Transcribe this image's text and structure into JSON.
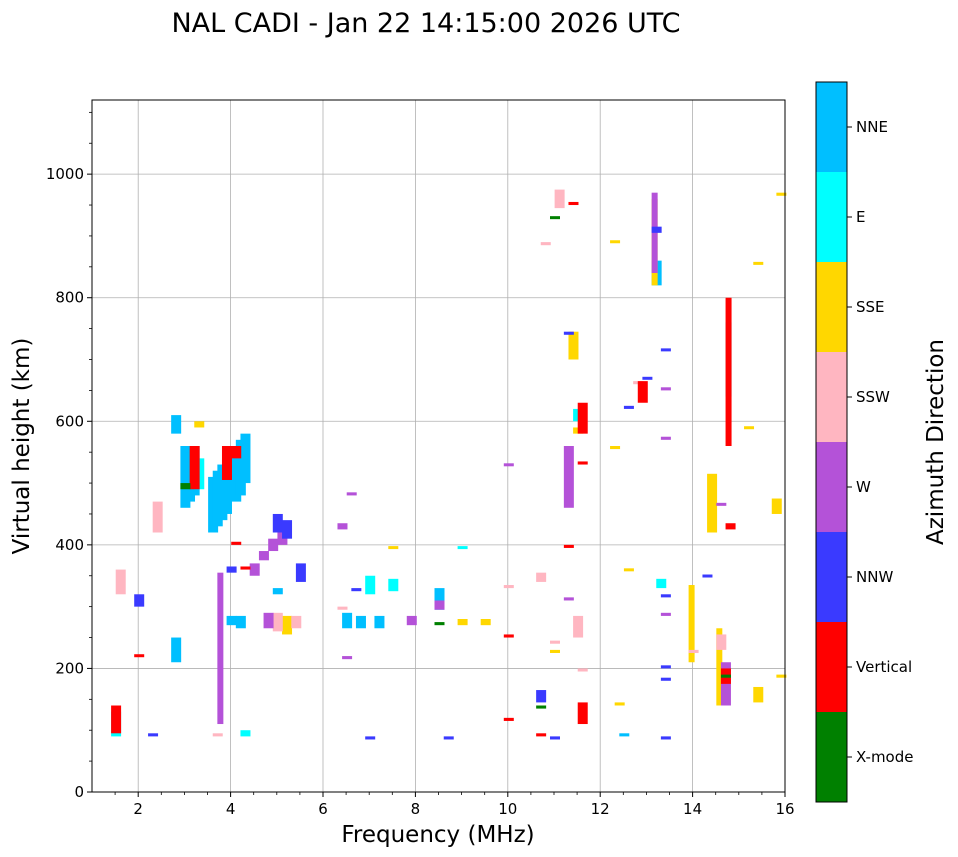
{
  "chart_data": {
    "type": "scatter",
    "title": "NAL CADI - Jan 22 14:15:00 2026 UTC",
    "xlabel": "Frequency (MHz)",
    "ylabel": "Virtual height (km)",
    "xlim": [
      1,
      16
    ],
    "ylim": [
      0,
      1120
    ],
    "xticks": [
      2,
      4,
      6,
      8,
      10,
      12,
      14,
      16
    ],
    "yticks": [
      0,
      200,
      400,
      600,
      800,
      1000
    ],
    "grid": true,
    "colorbar": {
      "label": "Azimuth Direction",
      "categories": [
        {
          "name": "X-mode",
          "color": "#008000"
        },
        {
          "name": "Vertical",
          "color": "#ff0000"
        },
        {
          "name": "NNW",
          "color": "#3a3aff"
        },
        {
          "name": "W",
          "color": "#b452d8"
        },
        {
          "name": "SSW",
          "color": "#ffb6c1"
        },
        {
          "name": "SSE",
          "color": "#ffd700"
        },
        {
          "name": "E",
          "color": "#00ffff"
        },
        {
          "name": "NNE",
          "color": "#00bfff"
        }
      ]
    },
    "series": [
      {
        "name": "NNE",
        "traces": [
          {
            "f": 3.0,
            "h": [
              460,
              560
            ]
          },
          {
            "f": 3.1,
            "h": [
              470,
              550
            ]
          },
          {
            "f": 3.2,
            "h": [
              480,
              560
            ]
          },
          {
            "f": 3.6,
            "h": [
              420,
              510
            ]
          },
          {
            "f": 3.7,
            "h": [
              430,
              520
            ]
          },
          {
            "f": 3.8,
            "h": [
              440,
              530
            ]
          },
          {
            "f": 3.9,
            "h": [
              450,
              540
            ]
          },
          {
            "f": 4.1,
            "h": [
              470,
              560
            ]
          },
          {
            "f": 4.2,
            "h": [
              480,
              570
            ]
          },
          {
            "f": 4.3,
            "h": [
              500,
              580
            ]
          },
          {
            "f": 4.0,
            "h": [
              270,
              285
            ]
          },
          {
            "f": 4.2,
            "h": [
              265,
              285
            ]
          },
          {
            "f": 5.0,
            "h": [
              320,
              330
            ]
          },
          {
            "f": 6.5,
            "h": [
              265,
              290
            ]
          },
          {
            "f": 6.8,
            "h": [
              265,
              285
            ]
          },
          {
            "f": 7.2,
            "h": [
              265,
              285
            ]
          },
          {
            "f": 2.8,
            "h": [
              580,
              610
            ]
          },
          {
            "f": 2.8,
            "h": [
              210,
              250
            ]
          },
          {
            "f": 8.5,
            "h": [
              295,
              330
            ]
          },
          {
            "f": 12.5,
            "h": [
              90,
              95
            ]
          },
          {
            "f": 13.2,
            "h": [
              820,
              860
            ]
          }
        ]
      },
      {
        "name": "E",
        "traces": [
          {
            "f": 3.3,
            "h": [
              490,
              540
            ]
          },
          {
            "f": 4.3,
            "h": [
              90,
              100
            ]
          },
          {
            "f": 7.0,
            "h": [
              320,
              350
            ]
          },
          {
            "f": 7.5,
            "h": [
              325,
              345
            ]
          },
          {
            "f": 9.0,
            "h": [
              395,
              398
            ]
          },
          {
            "f": 11.5,
            "h": [
              600,
              620
            ]
          },
          {
            "f": 13.3,
            "h": [
              330,
              345
            ]
          },
          {
            "f": 14.8,
            "h": [
              640,
              760
            ]
          },
          {
            "f": 1.5,
            "h": [
              90,
              130
            ]
          }
        ]
      },
      {
        "name": "SSE",
        "traces": [
          {
            "f": 3.3,
            "h": [
              590,
              600
            ]
          },
          {
            "f": 5.2,
            "h": [
              255,
              285
            ]
          },
          {
            "f": 7.5,
            "h": [
              395,
              398
            ]
          },
          {
            "f": 9.0,
            "h": [
              270,
              280
            ]
          },
          {
            "f": 9.5,
            "h": [
              270,
              280
            ]
          },
          {
            "f": 11.0,
            "h": [
              225,
              230
            ]
          },
          {
            "f": 11.4,
            "h": [
              700,
              745
            ]
          },
          {
            "f": 11.5,
            "h": [
              580,
              590
            ]
          },
          {
            "f": 12.3,
            "h": [
              890,
              893
            ]
          },
          {
            "f": 12.3,
            "h": [
              555,
              560
            ]
          },
          {
            "f": 12.4,
            "h": [
              140,
              145
            ]
          },
          {
            "f": 12.6,
            "h": [
              358,
              362
            ]
          },
          {
            "f": 13.2,
            "h": [
              820,
              960
            ]
          },
          {
            "f": 14.0,
            "h": [
              210,
              335
            ]
          },
          {
            "f": 14.4,
            "h": [
              420,
              515
            ]
          },
          {
            "f": 14.6,
            "h": [
              140,
              265
            ]
          },
          {
            "f": 15.2,
            "h": [
              590,
              592
            ]
          },
          {
            "f": 15.4,
            "h": [
              855,
              858
            ]
          },
          {
            "f": 15.4,
            "h": [
              145,
              170
            ]
          },
          {
            "f": 15.8,
            "h": [
              450,
              475
            ]
          },
          {
            "f": 15.9,
            "h": [
              965,
              970
            ]
          },
          {
            "f": 15.9,
            "h": [
              185,
              190
            ]
          }
        ]
      },
      {
        "name": "SSW",
        "traces": [
          {
            "f": 1.6,
            "h": [
              320,
              360
            ]
          },
          {
            "f": 2.4,
            "h": [
              420,
              470
            ]
          },
          {
            "f": 3.7,
            "h": [
              90,
              95
            ]
          },
          {
            "f": 5.0,
            "h": [
              260,
              290
            ]
          },
          {
            "f": 5.4,
            "h": [
              265,
              285
            ]
          },
          {
            "f": 6.4,
            "h": [
              295,
              300
            ]
          },
          {
            "f": 10.0,
            "h": [
              330,
              335
            ]
          },
          {
            "f": 10.7,
            "h": [
              340,
              355
            ]
          },
          {
            "f": 10.8,
            "h": [
              885,
              890
            ]
          },
          {
            "f": 11.0,
            "h": [
              240,
              245
            ]
          },
          {
            "f": 11.1,
            "h": [
              945,
              975
            ]
          },
          {
            "f": 11.5,
            "h": [
              250,
              285
            ]
          },
          {
            "f": 11.6,
            "h": [
              195,
              200
            ]
          },
          {
            "f": 12.8,
            "h": [
              660,
              665
            ]
          },
          {
            "f": 14.0,
            "h": [
              225,
              230
            ]
          },
          {
            "f": 14.6,
            "h": [
              230,
              255
            ]
          }
        ]
      },
      {
        "name": "W",
        "traces": [
          {
            "f": 3.8,
            "h": [
              110,
              355
            ]
          },
          {
            "f": 4.5,
            "h": [
              350,
              370
            ]
          },
          {
            "f": 4.7,
            "h": [
              375,
              390
            ]
          },
          {
            "f": 4.9,
            "h": [
              390,
              410
            ]
          },
          {
            "f": 5.1,
            "h": [
              400,
              430
            ]
          },
          {
            "f": 4.8,
            "h": [
              265,
              290
            ]
          },
          {
            "f": 6.4,
            "h": [
              425,
              435
            ]
          },
          {
            "f": 6.6,
            "h": [
              480,
              485
            ]
          },
          {
            "f": 6.5,
            "h": [
              215,
              220
            ]
          },
          {
            "f": 7.9,
            "h": [
              270,
              285
            ]
          },
          {
            "f": 8.5,
            "h": [
              295,
              310
            ]
          },
          {
            "f": 10.0,
            "h": [
              530,
              532
            ]
          },
          {
            "f": 11.3,
            "h": [
              460,
              560
            ]
          },
          {
            "f": 11.3,
            "h": [
              310,
              315
            ]
          },
          {
            "f": 13.2,
            "h": [
              840,
              970
            ]
          },
          {
            "f": 13.4,
            "h": [
              650,
              655
            ]
          },
          {
            "f": 13.4,
            "h": [
              570,
              575
            ]
          },
          {
            "f": 13.4,
            "h": [
              285,
              290
            ]
          },
          {
            "f": 14.6,
            "h": [
              465,
              468
            ]
          },
          {
            "f": 14.7,
            "h": [
              140,
              210
            ]
          }
        ]
      },
      {
        "name": "NNW",
        "traces": [
          {
            "f": 2.0,
            "h": [
              300,
              320
            ]
          },
          {
            "f": 2.3,
            "h": [
              90,
              95
            ]
          },
          {
            "f": 4.0,
            "h": [
              355,
              365
            ]
          },
          {
            "f": 5.0,
            "h": [
              420,
              450
            ]
          },
          {
            "f": 5.2,
            "h": [
              410,
              440
            ]
          },
          {
            "f": 5.5,
            "h": [
              340,
              370
            ]
          },
          {
            "f": 6.7,
            "h": [
              325,
              330
            ]
          },
          {
            "f": 7.0,
            "h": [
              85,
              90
            ]
          },
          {
            "f": 8.7,
            "h": [
              85,
              90
            ]
          },
          {
            "f": 10.7,
            "h": [
              145,
              165
            ]
          },
          {
            "f": 11.0,
            "h": [
              85,
              90
            ]
          },
          {
            "f": 11.3,
            "h": [
              740,
              745
            ]
          },
          {
            "f": 12.6,
            "h": [
              620,
              625
            ]
          },
          {
            "f": 13.0,
            "h": [
              670,
              672
            ]
          },
          {
            "f": 13.2,
            "h": [
              905,
              915
            ]
          },
          {
            "f": 13.4,
            "h": [
              715,
              718
            ]
          },
          {
            "f": 13.4,
            "h": [
              315,
              320
            ]
          },
          {
            "f": 13.4,
            "h": [
              200,
              205
            ]
          },
          {
            "f": 13.4,
            "h": [
              180,
              185
            ]
          },
          {
            "f": 13.4,
            "h": [
              85,
              90
            ]
          },
          {
            "f": 14.3,
            "h": [
              350,
              352
            ]
          }
        ]
      },
      {
        "name": "Vertical",
        "traces": [
          {
            "f": 1.5,
            "h": [
              95,
              140
            ]
          },
          {
            "f": 2.0,
            "h": [
              220,
              223
            ]
          },
          {
            "f": 3.2,
            "h": [
              490,
              560
            ]
          },
          {
            "f": 3.9,
            "h": [
              505,
              560
            ]
          },
          {
            "f": 4.1,
            "h": [
              540,
              560
            ]
          },
          {
            "f": 4.1,
            "h": [
              400,
              405
            ]
          },
          {
            "f": 4.3,
            "h": [
              360,
              365
            ]
          },
          {
            "f": 10.0,
            "h": [
              115,
              120
            ]
          },
          {
            "f": 10.0,
            "h": [
              250,
              255
            ]
          },
          {
            "f": 10.7,
            "h": [
              90,
              95
            ]
          },
          {
            "f": 11.3,
            "h": [
              395,
              400
            ]
          },
          {
            "f": 11.4,
            "h": [
              950,
              955
            ]
          },
          {
            "f": 11.6,
            "h": [
              530,
              535
            ]
          },
          {
            "f": 11.6,
            "h": [
              580,
              630
            ]
          },
          {
            "f": 11.6,
            "h": [
              110,
              145
            ]
          },
          {
            "f": 12.9,
            "h": [
              630,
              665
            ]
          },
          {
            "f": 14.8,
            "h": [
              560,
              800
            ]
          },
          {
            "f": 14.8,
            "h": [
              425,
              435
            ]
          },
          {
            "f": 14.7,
            "h": [
              175,
              200
            ]
          }
        ]
      },
      {
        "name": "X-mode",
        "traces": [
          {
            "f": 3.0,
            "h": [
              490,
              500
            ]
          },
          {
            "f": 8.5,
            "h": [
              270,
              275
            ]
          },
          {
            "f": 10.7,
            "h": [
              135,
              140
            ]
          },
          {
            "f": 11.0,
            "h": [
              930,
              932
            ]
          },
          {
            "f": 14.7,
            "h": [
              185,
              190
            ]
          }
        ]
      }
    ]
  }
}
